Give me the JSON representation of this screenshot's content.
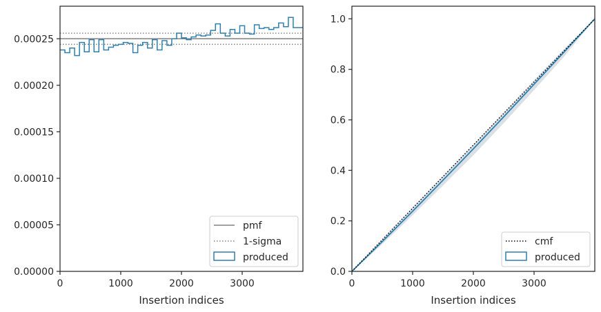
{
  "colors": {
    "produced": "#2e7fad",
    "pmf": "#808080",
    "sigma": "#808080",
    "cmf": "#000000",
    "band": "#c9d3dc",
    "frame": "#262626"
  },
  "chart_data": [
    {
      "type": "histogram",
      "title": "",
      "xlabel": "Insertion indices",
      "ylabel": "",
      "xlim": [
        0,
        4000
      ],
      "ylim": [
        0,
        0.000285
      ],
      "xticks": [
        0,
        1000,
        2000,
        3000
      ],
      "xtick_labels": [
        "0",
        "1000",
        "2000",
        "3000"
      ],
      "yticks": [
        0,
        5e-05,
        0.0001,
        0.00015,
        0.0002,
        0.00025
      ],
      "ytick_labels": [
        "0.00000",
        "0.00005",
        "0.00010",
        "0.00015",
        "0.00020",
        "0.00025"
      ],
      "pmf": 0.00025,
      "sigma_band": [
        0.000244,
        0.000256
      ],
      "bin_width": 80,
      "series": [
        {
          "name": "produced",
          "values": [
            0.000238,
            0.000235,
            0.00024,
            0.000232,
            0.000246,
            0.000236,
            0.000249,
            0.000236,
            0.000249,
            0.000238,
            0.000241,
            0.000243,
            0.000244,
            0.000246,
            0.000245,
            0.000235,
            0.000243,
            0.000246,
            0.00024,
            0.000249,
            0.000238,
            0.000248,
            0.000243,
            0.00025,
            0.000256,
            0.000251,
            0.000249,
            0.000252,
            0.000254,
            0.000253,
            0.000254,
            0.000259,
            0.000266,
            0.000256,
            0.000253,
            0.00026,
            0.000256,
            0.000264,
            0.000256,
            0.000255,
            0.000265,
            0.000261,
            0.000262,
            0.00026,
            0.000262,
            0.000267,
            0.000263,
            0.000273,
            0.000262,
            0.000262
          ]
        }
      ],
      "legend": {
        "position": "bottom-right",
        "entries": [
          "pmf",
          "1-sigma",
          "produced"
        ]
      }
    },
    {
      "type": "line",
      "title": "",
      "xlabel": "Insertion indices",
      "ylabel": "",
      "xlim": [
        0,
        4000
      ],
      "ylim": [
        0,
        1.05
      ],
      "xticks": [
        0,
        1000,
        2000,
        3000
      ],
      "xtick_labels": [
        "0",
        "1000",
        "2000",
        "3000"
      ],
      "yticks": [
        0,
        0.2,
        0.4,
        0.6,
        0.8,
        1.0
      ],
      "ytick_labels": [
        "0.0",
        "0.2",
        "0.4",
        "0.6",
        "0.8",
        "1.0"
      ],
      "series": [
        {
          "name": "cmf",
          "x": [
            0,
            4000
          ],
          "y": [
            0,
            1.0
          ]
        },
        {
          "name": "produced",
          "x": [
            0,
            500,
            1000,
            1500,
            2000,
            2500,
            3000,
            3500,
            4000
          ],
          "y": [
            0,
            0.118,
            0.238,
            0.361,
            0.485,
            0.612,
            0.741,
            0.87,
            1.0
          ]
        }
      ],
      "band": {
        "x": [
          0,
          500,
          1000,
          1500,
          2000,
          2500,
          3000,
          3500,
          4000
        ],
        "lower": [
          0,
          0.108,
          0.222,
          0.34,
          0.46,
          0.587,
          0.718,
          0.852,
          1.0
        ],
        "upper": [
          0,
          0.128,
          0.253,
          0.378,
          0.503,
          0.63,
          0.757,
          0.882,
          1.0
        ]
      },
      "legend": {
        "position": "bottom-right",
        "entries": [
          "cmf",
          "produced"
        ]
      }
    }
  ]
}
